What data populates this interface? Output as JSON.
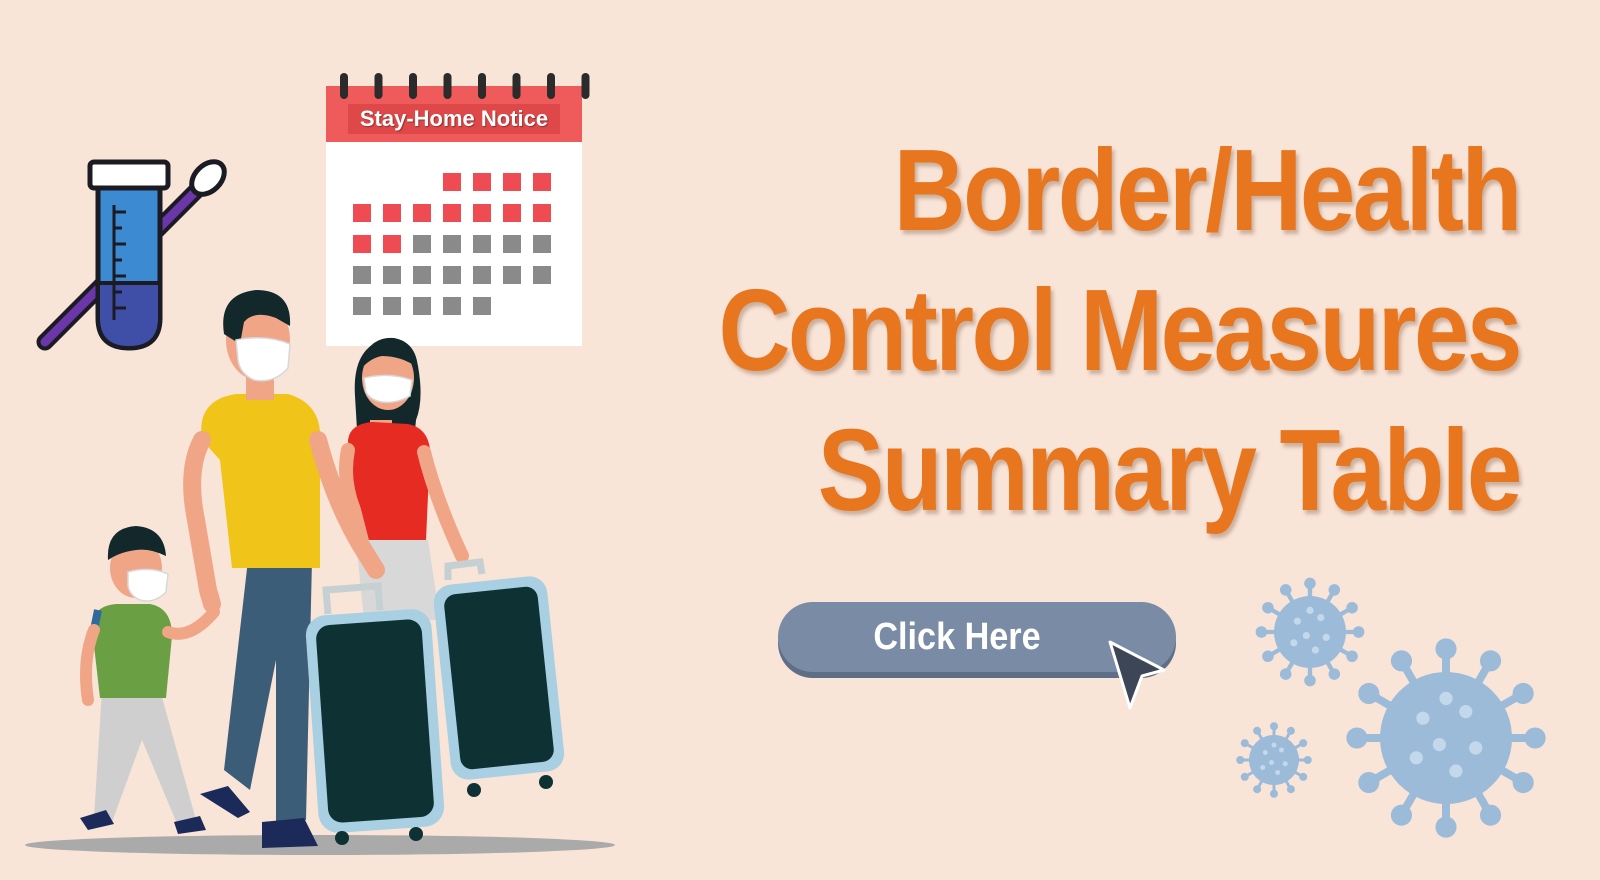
{
  "banner": {
    "headline_lines": [
      "Border/Health",
      "Control Measures",
      "Summary Table"
    ],
    "cta_label": "Click Here",
    "calendar_title": "Stay-Home Notice"
  },
  "colors": {
    "background": "#f9e4d8",
    "headline": "#e8761e",
    "button": "#7a8ba6",
    "calendar_header": "#ef5a5a",
    "calendar_marked": "#ee4b52",
    "calendar_unmarked": "#8a8a8a",
    "virus": "#9bbbd9"
  },
  "icons": [
    "test-tube-swab-icon",
    "calendar-icon",
    "virus-icon",
    "mouse-pointer-icon"
  ]
}
